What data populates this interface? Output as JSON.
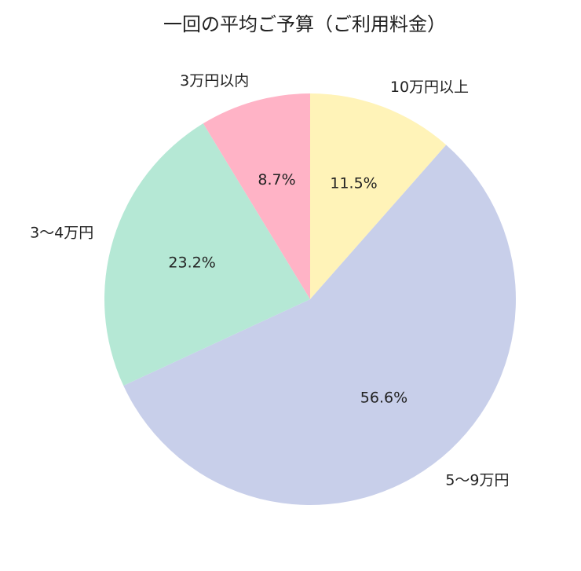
{
  "chart_data": {
    "type": "pie",
    "title": "一回の平均ご予算（ご利用料金）",
    "categories": [
      "10万円以上",
      "5〜9万円",
      "3〜4万円",
      "3万円以内"
    ],
    "values": [
      11.5,
      56.6,
      23.2,
      8.7
    ],
    "value_labels": [
      "11.5%",
      "56.6%",
      "23.2%",
      "8.7%"
    ],
    "colors": [
      "#fff3b8",
      "#c8cfea",
      "#b5e8d5",
      "#ffb3c6"
    ]
  }
}
